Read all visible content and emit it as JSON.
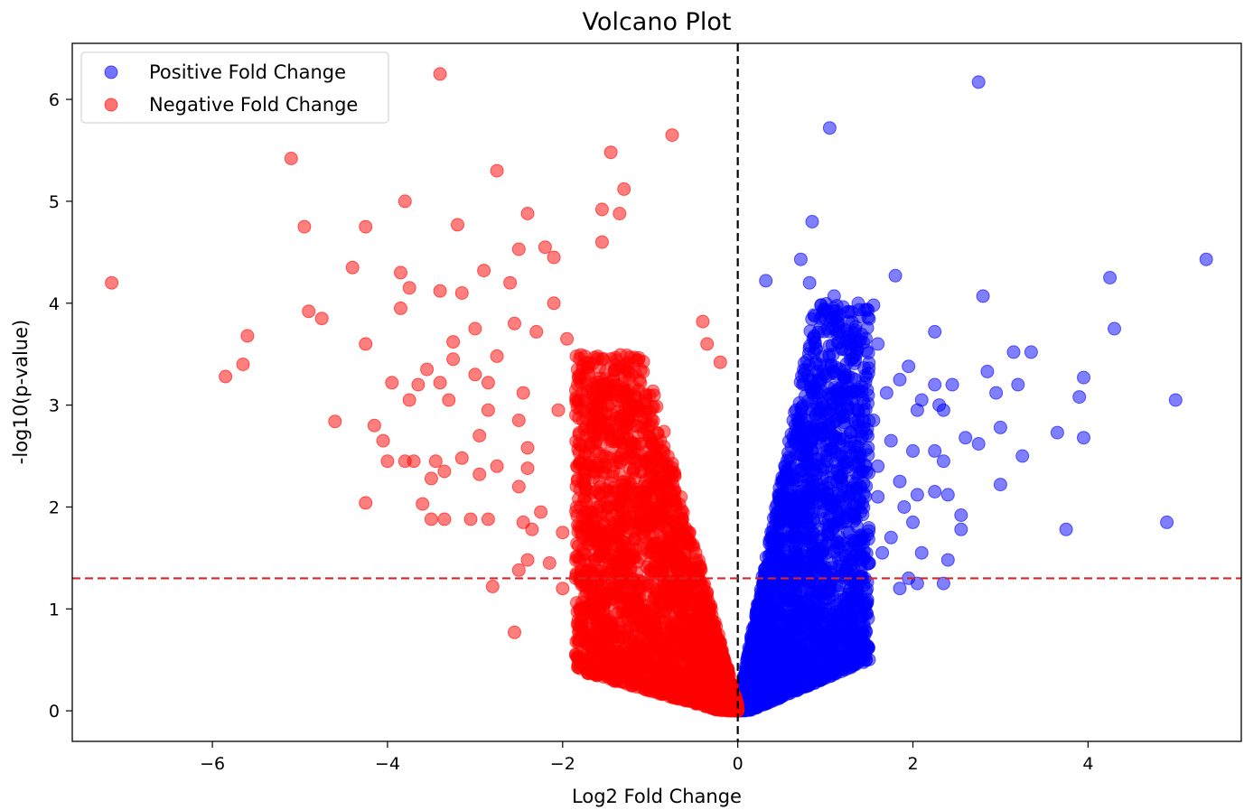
{
  "chart_data": {
    "type": "scatter",
    "title": "Volcano Plot",
    "xlabel": "Log2 Fold Change",
    "ylabel": "-log10(p-value)",
    "xlim": [
      -7.6,
      5.75
    ],
    "ylim": [
      -0.3,
      6.55
    ],
    "xticks": [
      -6,
      -4,
      -2,
      0,
      2,
      4
    ],
    "yticks": [
      0,
      1,
      2,
      3,
      4,
      5,
      6
    ],
    "xtick_labels": [
      "−6",
      "−4",
      "−2",
      "0",
      "2",
      "4"
    ],
    "ytick_labels": [
      "0",
      "1",
      "2",
      "3",
      "4",
      "5",
      "6"
    ],
    "grid": false,
    "legend_position": "top-left",
    "thresholds": {
      "vertical_x": 0,
      "horizontal_y": 1.3
    },
    "colors": {
      "positive": "#0000ff",
      "negative": "#ff0000",
      "threshold": "#d62728",
      "zero_line": "#000000"
    },
    "series": [
      {
        "name": "Positive Fold Change",
        "color": "#0000ff",
        "points": [
          [
            2.75,
            6.17
          ],
          [
            1.05,
            5.72
          ],
          [
            0.85,
            4.8
          ],
          [
            5.35,
            4.43
          ],
          [
            0.72,
            4.43
          ],
          [
            1.8,
            4.27
          ],
          [
            4.25,
            4.25
          ],
          [
            0.32,
            4.22
          ],
          [
            0.82,
            4.2
          ],
          [
            1.1,
            4.07
          ],
          [
            2.8,
            4.07
          ],
          [
            0.95,
            3.98
          ],
          [
            1.55,
            3.98
          ],
          [
            1.0,
            3.85
          ],
          [
            4.3,
            3.75
          ],
          [
            2.25,
            3.72
          ],
          [
            1.25,
            3.62
          ],
          [
            1.6,
            3.6
          ],
          [
            3.15,
            3.52
          ],
          [
            3.35,
            3.52
          ],
          [
            1.3,
            3.45
          ],
          [
            1.95,
            3.38
          ],
          [
            2.85,
            3.33
          ],
          [
            1.85,
            3.25
          ],
          [
            3.95,
            3.27
          ],
          [
            0.95,
            3.25
          ],
          [
            2.45,
            3.2
          ],
          [
            2.25,
            3.2
          ],
          [
            3.2,
            3.2
          ],
          [
            1.7,
            3.12
          ],
          [
            2.95,
            3.12
          ],
          [
            3.9,
            3.08
          ],
          [
            5.0,
            3.05
          ],
          [
            2.1,
            3.05
          ],
          [
            2.3,
            3.0
          ],
          [
            2.35,
            2.95
          ],
          [
            2.05,
            2.95
          ],
          [
            1.55,
            2.85
          ],
          [
            3.0,
            2.78
          ],
          [
            3.65,
            2.73
          ],
          [
            2.6,
            2.68
          ],
          [
            3.95,
            2.68
          ],
          [
            1.75,
            2.65
          ],
          [
            2.75,
            2.62
          ],
          [
            2.0,
            2.55
          ],
          [
            2.25,
            2.55
          ],
          [
            3.25,
            2.5
          ],
          [
            2.35,
            2.45
          ],
          [
            1.6,
            2.4
          ],
          [
            1.85,
            2.25
          ],
          [
            3.0,
            2.22
          ],
          [
            2.05,
            2.12
          ],
          [
            2.4,
            2.12
          ],
          [
            1.6,
            2.1
          ],
          [
            2.25,
            2.15
          ],
          [
            2.55,
            1.92
          ],
          [
            1.9,
            2.0
          ],
          [
            4.9,
            1.85
          ],
          [
            2.55,
            1.78
          ],
          [
            3.75,
            1.78
          ],
          [
            2.0,
            1.85
          ],
          [
            1.75,
            1.7
          ],
          [
            2.1,
            1.55
          ],
          [
            1.65,
            1.55
          ],
          [
            2.4,
            1.48
          ],
          [
            1.95,
            1.3
          ],
          [
            2.05,
            1.25
          ],
          [
            1.85,
            1.2
          ],
          [
            2.35,
            1.25
          ],
          [
            1.5,
            1.45
          ],
          [
            1.35,
            1.1
          ],
          [
            1.45,
            1.3
          ],
          [
            1.3,
            0.62
          ],
          [
            1.35,
            0.75
          ],
          [
            1.4,
            0.6
          ],
          [
            0.25,
            0.2
          ],
          [
            0.45,
            0.15
          ]
        ],
        "dense_cloud": {
          "x_min": 0.0,
          "x_max": 1.5,
          "y_max": 4.0,
          "y_at_x_max": 0.55,
          "count": 2400
        }
      },
      {
        "name": "Negative Fold Change",
        "color": "#ff0000",
        "points": [
          [
            -3.4,
            6.25
          ],
          [
            -0.75,
            5.65
          ],
          [
            -1.45,
            5.48
          ],
          [
            -5.1,
            5.42
          ],
          [
            -2.75,
            5.3
          ],
          [
            -1.3,
            5.12
          ],
          [
            -3.8,
            5.0
          ],
          [
            -2.4,
            4.88
          ],
          [
            -4.95,
            4.75
          ],
          [
            -4.25,
            4.75
          ],
          [
            -3.2,
            4.77
          ],
          [
            -1.55,
            4.92
          ],
          [
            -1.35,
            4.88
          ],
          [
            -7.15,
            4.2
          ],
          [
            -4.4,
            4.35
          ],
          [
            -3.85,
            4.3
          ],
          [
            -2.9,
            4.32
          ],
          [
            -2.5,
            4.53
          ],
          [
            -2.2,
            4.55
          ],
          [
            -2.1,
            4.45
          ],
          [
            -1.55,
            4.6
          ],
          [
            -3.4,
            4.12
          ],
          [
            -3.75,
            4.15
          ],
          [
            -3.15,
            4.1
          ],
          [
            -2.6,
            4.2
          ],
          [
            -2.1,
            4.0
          ],
          [
            -4.9,
            3.92
          ],
          [
            -4.75,
            3.85
          ],
          [
            -5.6,
            3.68
          ],
          [
            -5.85,
            3.28
          ],
          [
            -5.65,
            3.4
          ],
          [
            -4.25,
            3.6
          ],
          [
            -3.85,
            3.95
          ],
          [
            -3.0,
            3.75
          ],
          [
            -3.25,
            3.62
          ],
          [
            -2.55,
            3.8
          ],
          [
            -2.75,
            3.48
          ],
          [
            -2.3,
            3.72
          ],
          [
            -1.95,
            3.65
          ],
          [
            -0.4,
            3.82
          ],
          [
            -0.35,
            3.6
          ],
          [
            -0.2,
            3.42
          ],
          [
            -3.55,
            3.35
          ],
          [
            -3.25,
            3.45
          ],
          [
            -3.0,
            3.3
          ],
          [
            -3.95,
            3.22
          ],
          [
            -3.75,
            3.05
          ],
          [
            -3.4,
            3.22
          ],
          [
            -2.85,
            3.22
          ],
          [
            -3.65,
            3.2
          ],
          [
            -3.3,
            3.05
          ],
          [
            -2.45,
            3.12
          ],
          [
            -2.85,
            2.95
          ],
          [
            -2.05,
            2.95
          ],
          [
            -4.6,
            2.84
          ],
          [
            -4.15,
            2.8
          ],
          [
            -2.95,
            2.7
          ],
          [
            -2.5,
            2.85
          ],
          [
            -4.05,
            2.65
          ],
          [
            -2.4,
            2.58
          ],
          [
            -3.8,
            2.45
          ],
          [
            -3.7,
            2.45
          ],
          [
            -4.0,
            2.45
          ],
          [
            -3.45,
            2.45
          ],
          [
            -3.15,
            2.48
          ],
          [
            -2.75,
            2.4
          ],
          [
            -2.95,
            2.32
          ],
          [
            -3.35,
            2.35
          ],
          [
            -3.5,
            2.28
          ],
          [
            -2.5,
            2.2
          ],
          [
            -2.4,
            2.38
          ],
          [
            -4.25,
            2.04
          ],
          [
            -3.6,
            2.03
          ],
          [
            -3.5,
            1.88
          ],
          [
            -3.35,
            1.88
          ],
          [
            -3.05,
            1.88
          ],
          [
            -2.85,
            1.88
          ],
          [
            -2.45,
            1.85
          ],
          [
            -2.35,
            1.78
          ],
          [
            -2.25,
            1.95
          ],
          [
            -2.0,
            1.75
          ],
          [
            -2.15,
            1.45
          ],
          [
            -2.4,
            1.48
          ],
          [
            -2.5,
            1.38
          ],
          [
            -2.8,
            1.22
          ],
          [
            -2.55,
            0.77
          ],
          [
            -2.0,
            1.2
          ],
          [
            -1.85,
            1.3
          ],
          [
            -1.65,
            1.0
          ],
          [
            -1.45,
            0.85
          ],
          [
            -1.2,
            0.5
          ],
          [
            -0.75,
            0.5
          ],
          [
            -0.45,
            0.4
          ],
          [
            -1.6,
            0.68
          ],
          [
            -1.3,
            0.65
          ]
        ],
        "dense_cloud": {
          "x_min": -1.85,
          "x_max": 0.0,
          "y_max": 3.5,
          "y_at_x_min": 0.45,
          "count": 2700
        }
      }
    ]
  }
}
